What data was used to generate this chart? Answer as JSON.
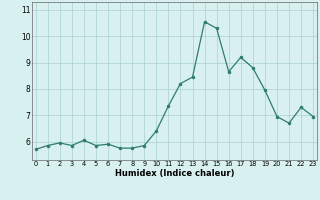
{
  "x": [
    0,
    1,
    2,
    3,
    4,
    5,
    6,
    7,
    8,
    9,
    10,
    11,
    12,
    13,
    14,
    15,
    16,
    17,
    18,
    19,
    20,
    21,
    22,
    23
  ],
  "y": [
    5.7,
    5.85,
    5.95,
    5.85,
    6.05,
    5.85,
    5.9,
    5.75,
    5.75,
    5.85,
    6.4,
    7.35,
    8.2,
    8.45,
    10.55,
    10.3,
    8.65,
    9.2,
    8.8,
    7.95,
    6.95,
    6.7,
    7.3,
    6.95
  ],
  "xlabel": "Humidex (Indice chaleur)",
  "line_color": "#2e7d6e",
  "marker_color": "#2e7d6e",
  "bg_color": "#d9f0f0",
  "grid_color": "#aacfcf",
  "ylim": [
    5.3,
    11.3
  ],
  "yticks": [
    6,
    7,
    8,
    9,
    10,
    11
  ],
  "xticks": [
    0,
    1,
    2,
    3,
    4,
    5,
    6,
    7,
    8,
    9,
    10,
    11,
    12,
    13,
    14,
    15,
    16,
    17,
    18,
    19,
    20,
    21,
    22,
    23
  ],
  "xlim": [
    -0.3,
    23.3
  ]
}
